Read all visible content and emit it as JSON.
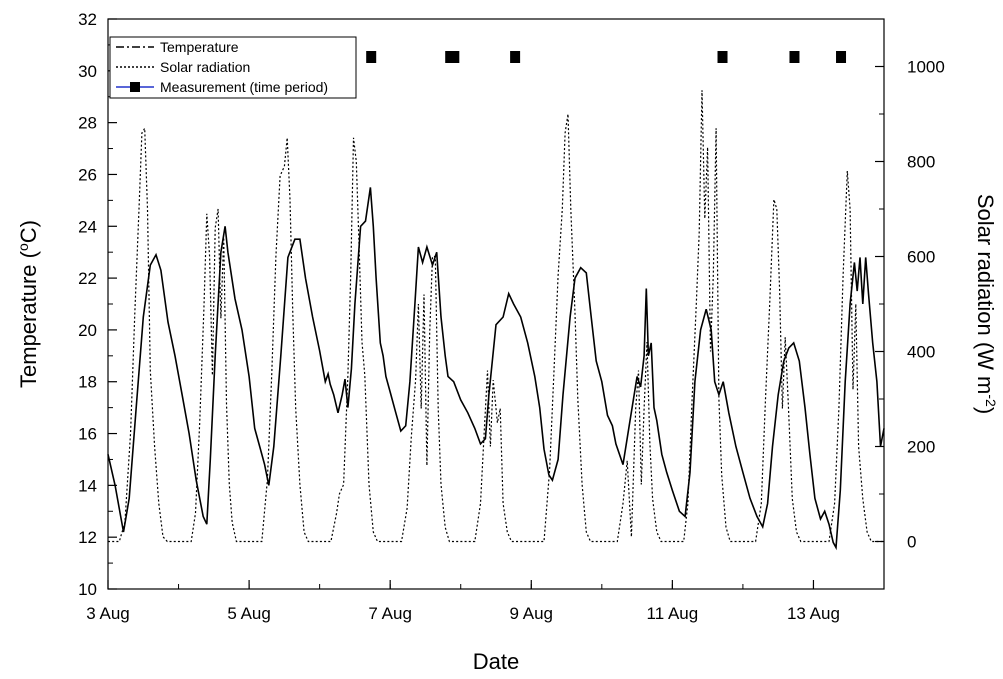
{
  "chart_data": {
    "type": "line",
    "xlabel": "Date",
    "ylabel_left": "Temperature (",
    "ylabel_left_unit_sup": "o",
    "ylabel_left_unit_tail": "C)",
    "ylabel_right": "Solar radiation (W m",
    "ylabel_right_sup": "-2",
    "ylabel_right_tail": ")",
    "xlim_days": [
      3,
      14
    ],
    "ylim_left": [
      10,
      32
    ],
    "ylim_right": [
      -100,
      1100
    ],
    "x_ticks": [
      {
        "day": 3,
        "label": "3 Aug"
      },
      {
        "day": 5,
        "label": "5 Aug"
      },
      {
        "day": 7,
        "label": "7 Aug"
      },
      {
        "day": 9,
        "label": "9 Aug"
      },
      {
        "day": 11,
        "label": "11 Aug"
      },
      {
        "day": 13,
        "label": "13 Aug"
      }
    ],
    "y_left_ticks": [
      "10",
      "12",
      "14",
      "16",
      "18",
      "20",
      "22",
      "24",
      "26",
      "28",
      "30",
      "32"
    ],
    "y_right_ticks": [
      "0",
      "200",
      "400",
      "600",
      "800",
      "1000"
    ],
    "legend": {
      "placement": "top-left",
      "entries": [
        "Temperature",
        "Solar radiation",
        "Measurement (time period)"
      ]
    },
    "series": [
      {
        "name": "Temperature",
        "axis": "left",
        "style": "solid",
        "points": [
          [
            3.0,
            15.2
          ],
          [
            3.1,
            14.0
          ],
          [
            3.18,
            12.8
          ],
          [
            3.22,
            12.2
          ],
          [
            3.3,
            13.5
          ],
          [
            3.4,
            17.0
          ],
          [
            3.5,
            20.5
          ],
          [
            3.6,
            22.5
          ],
          [
            3.68,
            22.9
          ],
          [
            3.75,
            22.3
          ],
          [
            3.85,
            20.3
          ],
          [
            3.95,
            19.0
          ],
          [
            4.05,
            17.5
          ],
          [
            4.15,
            16.0
          ],
          [
            4.25,
            14.2
          ],
          [
            4.35,
            12.8
          ],
          [
            4.4,
            12.5
          ],
          [
            4.45,
            15.0
          ],
          [
            4.52,
            19.0
          ],
          [
            4.6,
            23.0
          ],
          [
            4.66,
            24.0
          ],
          [
            4.7,
            23.0
          ],
          [
            4.8,
            21.2
          ],
          [
            4.9,
            20.0
          ],
          [
            5.0,
            18.2
          ],
          [
            5.08,
            16.2
          ],
          [
            5.15,
            15.5
          ],
          [
            5.22,
            14.8
          ],
          [
            5.28,
            14.0
          ],
          [
            5.35,
            15.5
          ],
          [
            5.45,
            19.0
          ],
          [
            5.55,
            22.8
          ],
          [
            5.65,
            23.5
          ],
          [
            5.72,
            23.5
          ],
          [
            5.8,
            22.0
          ],
          [
            5.9,
            20.5
          ],
          [
            6.0,
            19.2
          ],
          [
            6.08,
            18.0
          ],
          [
            6.12,
            18.3
          ],
          [
            6.15,
            17.9
          ],
          [
            6.2,
            17.5
          ],
          [
            6.26,
            16.8
          ],
          [
            6.32,
            17.5
          ],
          [
            6.36,
            18.1
          ],
          [
            6.4,
            17.0
          ],
          [
            6.45,
            18.5
          ],
          [
            6.5,
            21.0
          ],
          [
            6.58,
            24.0
          ],
          [
            6.65,
            24.2
          ],
          [
            6.72,
            25.5
          ],
          [
            6.76,
            24.0
          ],
          [
            6.8,
            22.0
          ],
          [
            6.86,
            19.5
          ],
          [
            6.9,
            19.0
          ],
          [
            6.94,
            18.2
          ],
          [
            7.0,
            17.6
          ],
          [
            7.08,
            16.8
          ],
          [
            7.15,
            16.1
          ],
          [
            7.22,
            16.3
          ],
          [
            7.28,
            18.0
          ],
          [
            7.35,
            21.0
          ],
          [
            7.4,
            23.2
          ],
          [
            7.46,
            22.6
          ],
          [
            7.52,
            23.2
          ],
          [
            7.6,
            22.5
          ],
          [
            7.66,
            23.0
          ],
          [
            7.72,
            20.5
          ],
          [
            7.78,
            19.0
          ],
          [
            7.82,
            18.2
          ],
          [
            7.9,
            18.0
          ],
          [
            8.0,
            17.3
          ],
          [
            8.1,
            16.8
          ],
          [
            8.2,
            16.2
          ],
          [
            8.28,
            15.6
          ],
          [
            8.35,
            15.8
          ],
          [
            8.4,
            17.5
          ],
          [
            8.5,
            20.2
          ],
          [
            8.6,
            20.5
          ],
          [
            8.68,
            21.4
          ],
          [
            8.75,
            21.0
          ],
          [
            8.85,
            20.5
          ],
          [
            8.95,
            19.5
          ],
          [
            9.05,
            18.2
          ],
          [
            9.12,
            17.0
          ],
          [
            9.18,
            15.4
          ],
          [
            9.25,
            14.4
          ],
          [
            9.3,
            14.2
          ],
          [
            9.38,
            15.0
          ],
          [
            9.45,
            17.5
          ],
          [
            9.55,
            20.5
          ],
          [
            9.62,
            22.0
          ],
          [
            9.7,
            22.4
          ],
          [
            9.78,
            22.2
          ],
          [
            9.85,
            20.5
          ],
          [
            9.92,
            18.8
          ],
          [
            10.0,
            18.0
          ],
          [
            10.08,
            16.7
          ],
          [
            10.15,
            16.3
          ],
          [
            10.2,
            15.6
          ],
          [
            10.3,
            14.8
          ],
          [
            10.4,
            16.5
          ],
          [
            10.5,
            18.2
          ],
          [
            10.55,
            17.8
          ],
          [
            10.6,
            19.0
          ],
          [
            10.63,
            21.6
          ],
          [
            10.66,
            19.0
          ],
          [
            10.7,
            19.5
          ],
          [
            10.74,
            17.0
          ],
          [
            10.78,
            16.5
          ],
          [
            10.85,
            15.2
          ],
          [
            10.92,
            14.5
          ],
          [
            11.0,
            13.8
          ],
          [
            11.1,
            13.0
          ],
          [
            11.18,
            12.8
          ],
          [
            11.25,
            14.5
          ],
          [
            11.32,
            18.0
          ],
          [
            11.4,
            20.0
          ],
          [
            11.48,
            20.8
          ],
          [
            11.55,
            20.0
          ],
          [
            11.6,
            18.0
          ],
          [
            11.66,
            17.5
          ],
          [
            11.72,
            18.0
          ],
          [
            11.8,
            16.8
          ],
          [
            11.9,
            15.5
          ],
          [
            12.0,
            14.5
          ],
          [
            12.1,
            13.5
          ],
          [
            12.2,
            12.8
          ],
          [
            12.28,
            12.4
          ],
          [
            12.35,
            13.3
          ],
          [
            12.42,
            15.5
          ],
          [
            12.5,
            17.5
          ],
          [
            12.58,
            18.8
          ],
          [
            12.65,
            19.3
          ],
          [
            12.72,
            19.5
          ],
          [
            12.8,
            18.8
          ],
          [
            12.88,
            17.0
          ],
          [
            12.95,
            15.2
          ],
          [
            13.02,
            13.5
          ],
          [
            13.1,
            12.7
          ],
          [
            13.16,
            13.0
          ],
          [
            13.22,
            12.5
          ],
          [
            13.28,
            11.8
          ],
          [
            13.32,
            11.6
          ],
          [
            13.38,
            13.8
          ],
          [
            13.45,
            18.0
          ],
          [
            13.52,
            21.0
          ],
          [
            13.58,
            22.6
          ],
          [
            13.62,
            21.5
          ],
          [
            13.66,
            22.8
          ],
          [
            13.7,
            21.0
          ],
          [
            13.74,
            22.8
          ],
          [
            13.78,
            21.4
          ],
          [
            13.84,
            19.5
          ],
          [
            13.9,
            18.0
          ],
          [
            13.95,
            15.5
          ],
          [
            14.0,
            16.2
          ]
        ]
      },
      {
        "name": "Solar radiation",
        "axis": "right",
        "style": "dotted",
        "points": [
          [
            3.0,
            0
          ],
          [
            3.16,
            0
          ],
          [
            3.24,
            40
          ],
          [
            3.32,
            230
          ],
          [
            3.38,
            480
          ],
          [
            3.44,
            700
          ],
          [
            3.48,
            860
          ],
          [
            3.52,
            870
          ],
          [
            3.56,
            700
          ],
          [
            3.6,
            360
          ],
          [
            3.66,
            200
          ],
          [
            3.72,
            80
          ],
          [
            3.78,
            10
          ],
          [
            3.84,
            0
          ],
          [
            4.18,
            0
          ],
          [
            4.24,
            60
          ],
          [
            4.3,
            250
          ],
          [
            4.36,
            490
          ],
          [
            4.4,
            690
          ],
          [
            4.44,
            600
          ],
          [
            4.48,
            350
          ],
          [
            4.52,
            660
          ],
          [
            4.56,
            700
          ],
          [
            4.6,
            470
          ],
          [
            4.64,
            640
          ],
          [
            4.68,
            290
          ],
          [
            4.72,
            120
          ],
          [
            4.76,
            40
          ],
          [
            4.82,
            0
          ],
          [
            5.18,
            0
          ],
          [
            5.26,
            130
          ],
          [
            5.32,
            350
          ],
          [
            5.38,
            600
          ],
          [
            5.44,
            770
          ],
          [
            5.5,
            790
          ],
          [
            5.54,
            850
          ],
          [
            5.58,
            720
          ],
          [
            5.62,
            480
          ],
          [
            5.66,
            280
          ],
          [
            5.72,
            120
          ],
          [
            5.78,
            20
          ],
          [
            5.84,
            0
          ],
          [
            6.16,
            0
          ],
          [
            6.24,
            60
          ],
          [
            6.28,
            100
          ],
          [
            6.34,
            120
          ],
          [
            6.4,
            350
          ],
          [
            6.44,
            560
          ],
          [
            6.48,
            850
          ],
          [
            6.52,
            800
          ],
          [
            6.56,
            620
          ],
          [
            6.6,
            420
          ],
          [
            6.64,
            350
          ],
          [
            6.7,
            120
          ],
          [
            6.76,
            20
          ],
          [
            6.82,
            0
          ],
          [
            7.16,
            0
          ],
          [
            7.24,
            70
          ],
          [
            7.3,
            220
          ],
          [
            7.36,
            340
          ],
          [
            7.4,
            500
          ],
          [
            7.44,
            280
          ],
          [
            7.48,
            520
          ],
          [
            7.52,
            160
          ],
          [
            7.56,
            440
          ],
          [
            7.6,
            600
          ],
          [
            7.64,
            600
          ],
          [
            7.68,
            280
          ],
          [
            7.72,
            120
          ],
          [
            7.78,
            30
          ],
          [
            7.84,
            0
          ],
          [
            8.2,
            0
          ],
          [
            8.28,
            80
          ],
          [
            8.34,
            250
          ],
          [
            8.38,
            360
          ],
          [
            8.42,
            200
          ],
          [
            8.46,
            340
          ],
          [
            8.52,
            250
          ],
          [
            8.56,
            280
          ],
          [
            8.6,
            80
          ],
          [
            8.66,
            20
          ],
          [
            8.72,
            0
          ],
          [
            9.18,
            0
          ],
          [
            9.26,
            150
          ],
          [
            9.32,
            350
          ],
          [
            9.38,
            560
          ],
          [
            9.44,
            700
          ],
          [
            9.48,
            860
          ],
          [
            9.52,
            900
          ],
          [
            9.56,
            700
          ],
          [
            9.62,
            480
          ],
          [
            9.66,
            300
          ],
          [
            9.72,
            120
          ],
          [
            9.78,
            20
          ],
          [
            9.84,
            0
          ],
          [
            10.22,
            0
          ],
          [
            10.3,
            80
          ],
          [
            10.36,
            170
          ],
          [
            10.42,
            10
          ],
          [
            10.48,
            280
          ],
          [
            10.52,
            360
          ],
          [
            10.56,
            120
          ],
          [
            10.6,
            280
          ],
          [
            10.64,
            420
          ],
          [
            10.68,
            210
          ],
          [
            10.72,
            90
          ],
          [
            10.78,
            20
          ],
          [
            10.84,
            0
          ],
          [
            11.16,
            0
          ],
          [
            11.22,
            80
          ],
          [
            11.28,
            300
          ],
          [
            11.34,
            500
          ],
          [
            11.38,
            650
          ],
          [
            11.42,
            950
          ],
          [
            11.46,
            680
          ],
          [
            11.5,
            830
          ],
          [
            11.54,
            400
          ],
          [
            11.58,
            560
          ],
          [
            11.62,
            870
          ],
          [
            11.66,
            300
          ],
          [
            11.7,
            140
          ],
          [
            11.76,
            30
          ],
          [
            11.82,
            0
          ],
          [
            12.18,
            0
          ],
          [
            12.26,
            80
          ],
          [
            12.32,
            300
          ],
          [
            12.38,
            500
          ],
          [
            12.44,
            720
          ],
          [
            12.48,
            700
          ],
          [
            12.52,
            530
          ],
          [
            12.56,
            280
          ],
          [
            12.6,
            430
          ],
          [
            12.64,
            300
          ],
          [
            12.7,
            90
          ],
          [
            12.76,
            20
          ],
          [
            12.82,
            0
          ],
          [
            13.22,
            0
          ],
          [
            13.3,
            80
          ],
          [
            13.36,
            280
          ],
          [
            13.42,
            560
          ],
          [
            13.48,
            780
          ],
          [
            13.52,
            700
          ],
          [
            13.56,
            320
          ],
          [
            13.6,
            500
          ],
          [
            13.64,
            200
          ],
          [
            13.7,
            90
          ],
          [
            13.76,
            20
          ],
          [
            13.82,
            0
          ],
          [
            14.0,
            0
          ]
        ]
      }
    ],
    "measurement_periods_days": [
      [
        6.66,
        6.78
      ],
      [
        7.78,
        7.98
      ],
      [
        8.7,
        8.84
      ],
      [
        11.64,
        11.76
      ],
      [
        12.66,
        12.78
      ],
      [
        13.32,
        13.42
      ]
    ]
  }
}
